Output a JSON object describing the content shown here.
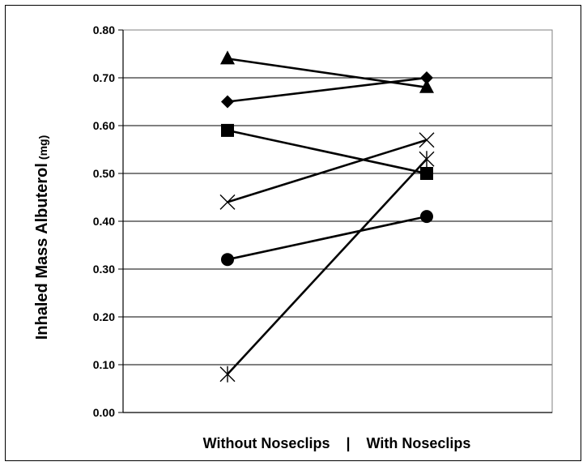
{
  "chart_data": {
    "type": "line",
    "xlabel": "Without Noseclips    |    With Noseclips",
    "ylabel": "Inhaled Mass Albuterol",
    "ylabel_unit": "(mg)",
    "ylim": [
      0,
      0.8
    ],
    "y_ticks": [
      "0.00",
      "0.10",
      "0.20",
      "0.30",
      "0.40",
      "0.50",
      "0.60",
      "0.70",
      "0.80"
    ],
    "grid": true,
    "legend": "none",
    "categories": [
      "Without Noseclips",
      "With Noseclips"
    ],
    "series": [
      {
        "marker": "triangle",
        "values": [
          0.74,
          0.68
        ]
      },
      {
        "marker": "diamond",
        "values": [
          0.65,
          0.7
        ]
      },
      {
        "marker": "square",
        "values": [
          0.59,
          0.5
        ]
      },
      {
        "marker": "x",
        "values": [
          0.44,
          0.57
        ]
      },
      {
        "marker": "circle",
        "values": [
          0.32,
          0.41
        ]
      },
      {
        "marker": "star",
        "values": [
          0.08,
          0.53
        ]
      }
    ],
    "colors": {
      "line": "#000000",
      "grid": "#000000",
      "plot_border": "#808080"
    }
  }
}
